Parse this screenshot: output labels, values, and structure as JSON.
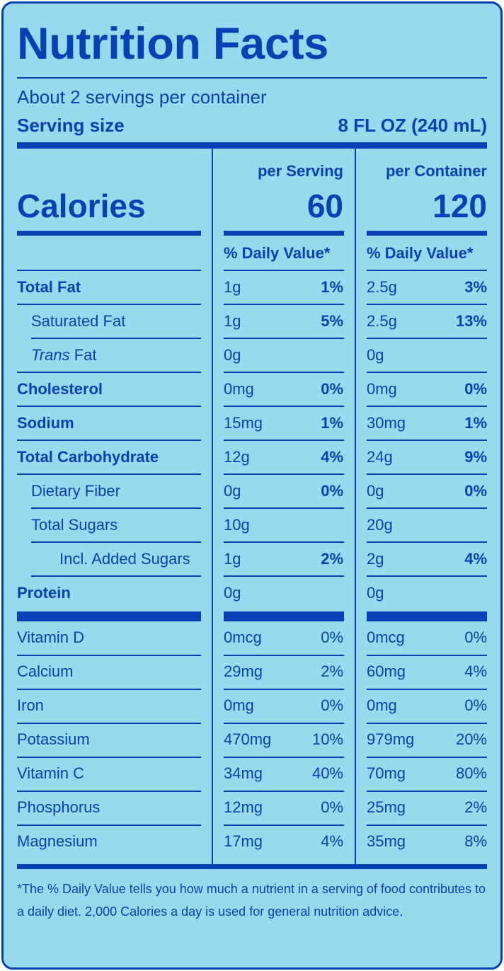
{
  "title": "Nutrition Facts",
  "servings_per_container": "About 2 servings per container",
  "serving_size_label": "Serving size",
  "serving_size_value": "8 FL OZ (240 mL)",
  "per_serving_label": "per Serving",
  "per_container_label": "per Container",
  "calories_label": "Calories",
  "calories_serving": "60",
  "calories_container": "120",
  "daily_value_header": "% Daily Value*",
  "nutrients": [
    {
      "name": "Total Fat",
      "bold": true,
      "indent": 0,
      "s_amt": "1g",
      "s_dv": "1%",
      "c_amt": "2.5g",
      "c_dv": "3%"
    },
    {
      "name": "Saturated Fat",
      "bold": false,
      "indent": 1,
      "s_amt": "1g",
      "s_dv": "5%",
      "c_amt": "2.5g",
      "c_dv": "13%"
    },
    {
      "name": "Trans Fat",
      "bold": false,
      "indent": 1,
      "italic_prefix": "Trans",
      "rest": " Fat",
      "s_amt": "0g",
      "s_dv": "",
      "c_amt": "0g",
      "c_dv": ""
    },
    {
      "name": "Cholesterol",
      "bold": true,
      "indent": 0,
      "s_amt": "0mg",
      "s_dv": "0%",
      "c_amt": "0mg",
      "c_dv": "0%"
    },
    {
      "name": "Sodium",
      "bold": true,
      "indent": 0,
      "s_amt": "15mg",
      "s_dv": "1%",
      "c_amt": "30mg",
      "c_dv": "1%"
    },
    {
      "name": "Total Carbohydrate",
      "bold": true,
      "indent": 0,
      "s_amt": "12g",
      "s_dv": "4%",
      "c_amt": "24g",
      "c_dv": "9%"
    },
    {
      "name": "Dietary Fiber",
      "bold": false,
      "indent": 1,
      "s_amt": "0g",
      "s_dv": "0%",
      "c_amt": "0g",
      "c_dv": "0%"
    },
    {
      "name": "Total Sugars",
      "bold": false,
      "indent": 1,
      "s_amt": "10g",
      "s_dv": "",
      "c_amt": "20g",
      "c_dv": ""
    },
    {
      "name": "Incl. Added Sugars",
      "bold": false,
      "indent": 2,
      "s_amt": "1g",
      "s_dv": "2%",
      "c_amt": "2g",
      "c_dv": "4%"
    },
    {
      "name": "Protein",
      "bold": true,
      "indent": 0,
      "s_amt": "0g",
      "s_dv": "",
      "c_amt": "0g",
      "c_dv": ""
    }
  ],
  "vitamins": [
    {
      "name": "Vitamin D",
      "s_amt": "0mcg",
      "s_dv": "0%",
      "c_amt": "0mcg",
      "c_dv": "0%"
    },
    {
      "name": "Calcium",
      "s_amt": "29mg",
      "s_dv": "2%",
      "c_amt": "60mg",
      "c_dv": "4%"
    },
    {
      "name": "Iron",
      "s_amt": "0mg",
      "s_dv": "0%",
      "c_amt": "0mg",
      "c_dv": "0%"
    },
    {
      "name": "Potassium",
      "s_amt": "470mg",
      "s_dv": "10%",
      "c_amt": "979mg",
      "c_dv": "20%"
    },
    {
      "name": "Vitamin C",
      "s_amt": "34mg",
      "s_dv": "40%",
      "c_amt": "70mg",
      "c_dv": "80%"
    },
    {
      "name": "Phosphorus",
      "s_amt": "12mg",
      "s_dv": "0%",
      "c_amt": "25mg",
      "c_dv": "2%"
    },
    {
      "name": "Magnesium",
      "s_amt": "17mg",
      "s_dv": "4%",
      "c_amt": "35mg",
      "c_dv": "8%"
    }
  ],
  "footnote": "*The % Daily Value tells you how much a nutrient in a serving of food contributes to a daily diet. 2,000 Calories a day is used for general nutrition advice.",
  "colors": {
    "background": "#97daee",
    "ink": "#0741b5"
  }
}
